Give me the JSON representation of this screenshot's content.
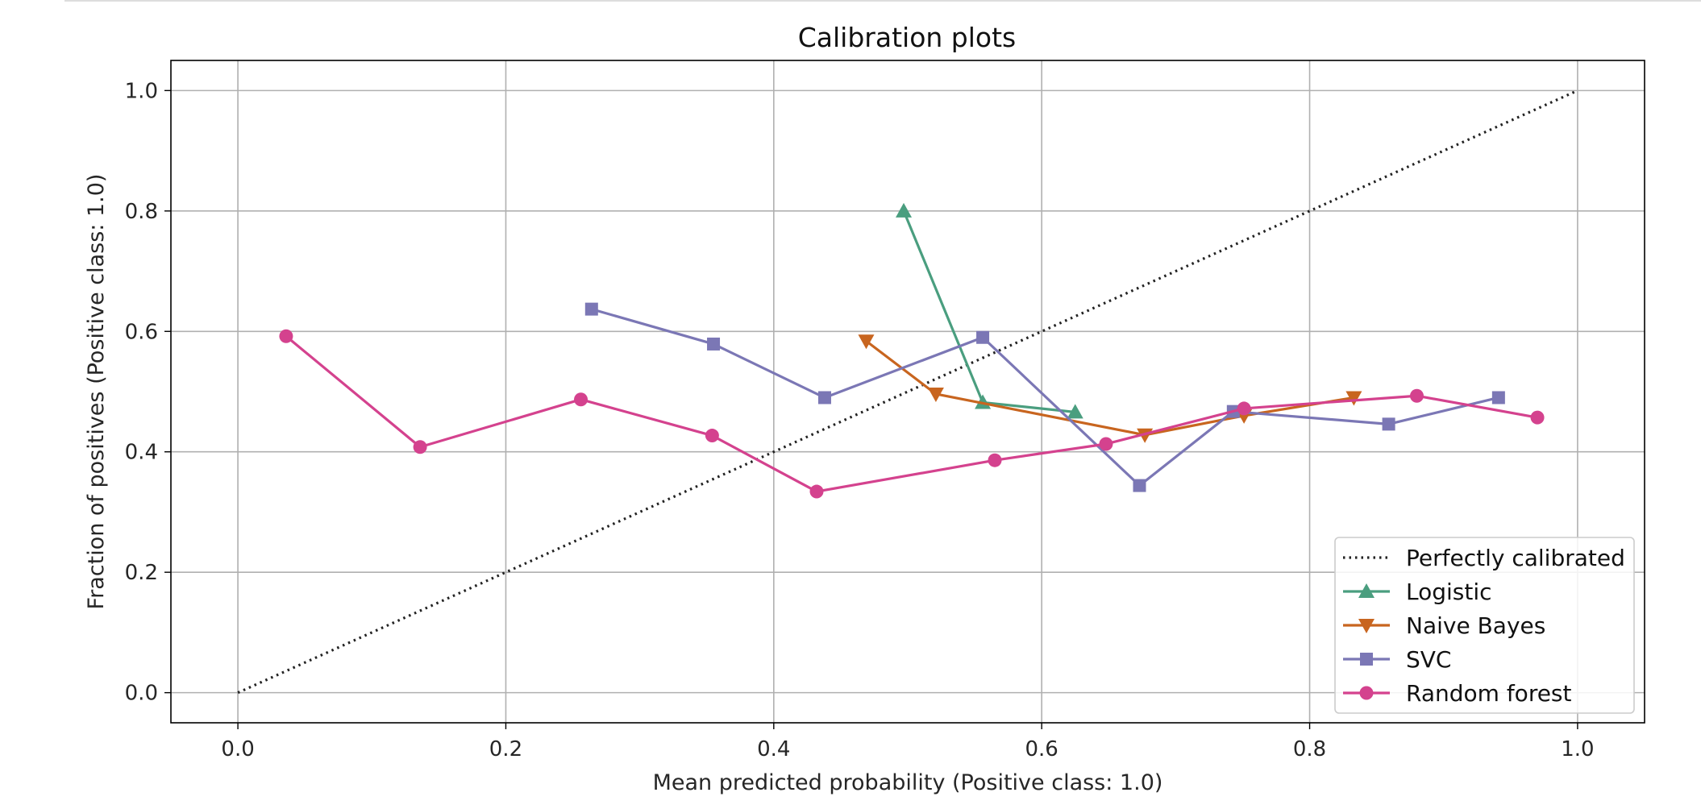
{
  "chart_data": {
    "type": "line",
    "title": "Calibration plots",
    "xlabel": "Mean predicted probability (Positive class: 1.0)",
    "ylabel": "Fraction of positives (Positive class: 1.0)",
    "xlim": [
      -0.05,
      1.05
    ],
    "ylim": [
      -0.05,
      1.05
    ],
    "xticks": [
      0.0,
      0.2,
      0.4,
      0.6,
      0.8,
      1.0
    ],
    "xtick_labels": [
      "0.0",
      "0.2",
      "0.4",
      "0.6",
      "0.8",
      "1.0"
    ],
    "yticks": [
      0.0,
      0.2,
      0.4,
      0.6,
      0.8,
      1.0
    ],
    "ytick_labels": [
      "0.0",
      "0.2",
      "0.4",
      "0.6",
      "0.8",
      "1.0"
    ],
    "grid": true,
    "legend_position": "lower-right",
    "reference": {
      "name": "Perfectly calibrated",
      "x": [
        0.0,
        1.0
      ],
      "y": [
        0.0,
        1.0
      ],
      "color": "#222222",
      "style": "dotted"
    },
    "series": [
      {
        "name": "Logistic",
        "color": "#4a9e7f",
        "marker": "triangle-up",
        "x": [
          0.497,
          0.556,
          0.625
        ],
        "y": [
          0.8,
          0.482,
          0.466
        ]
      },
      {
        "name": "Naive Bayes",
        "color": "#c8651f",
        "marker": "triangle-down",
        "x": [
          0.469,
          0.521,
          0.677,
          0.751,
          0.833
        ],
        "y": [
          0.584,
          0.496,
          0.428,
          0.46,
          0.49
        ]
      },
      {
        "name": "SVC",
        "color": "#7b77b5",
        "marker": "square",
        "x": [
          0.264,
          0.355,
          0.438,
          0.556,
          0.673,
          0.743,
          0.859,
          0.941
        ],
        "y": [
          0.637,
          0.579,
          0.49,
          0.59,
          0.344,
          0.467,
          0.446,
          0.49
        ]
      },
      {
        "name": "Random forest",
        "color": "#d4428e",
        "marker": "circle",
        "x": [
          0.036,
          0.136,
          0.256,
          0.354,
          0.432,
          0.565,
          0.648,
          0.751,
          0.88,
          0.97
        ],
        "y": [
          0.592,
          0.408,
          0.487,
          0.427,
          0.334,
          0.386,
          0.413,
          0.472,
          0.493,
          0.457
        ]
      }
    ]
  }
}
